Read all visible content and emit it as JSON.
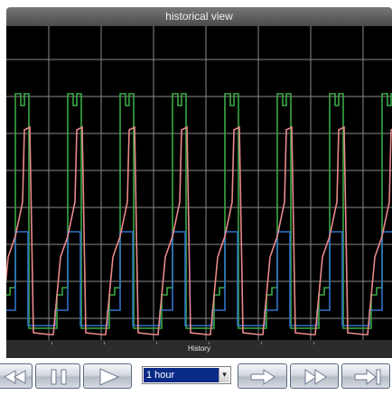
{
  "window": {
    "title": "historical view"
  },
  "plot": {
    "axis_label": "History",
    "background": "#000000",
    "grid_color": "#8a8a8a",
    "series": [
      {
        "name": "",
        "color": "#3aa845",
        "kind": "pulse"
      },
      {
        "name": "",
        "color": "#e98a8a",
        "kind": "sawtooth"
      },
      {
        "name": "",
        "color": "#2f72c8",
        "kind": "step"
      }
    ]
  },
  "controls": {
    "buttons": [
      {
        "icon": "rewind-icon"
      },
      {
        "icon": "pause-icon"
      },
      {
        "icon": "play-icon"
      },
      {
        "icon": "arrow-right-icon"
      },
      {
        "icon": "fast-forward-icon"
      },
      {
        "icon": "skip-to-end-icon"
      }
    ],
    "range": {
      "selected": "1 hour",
      "arrow": "▾"
    }
  }
}
